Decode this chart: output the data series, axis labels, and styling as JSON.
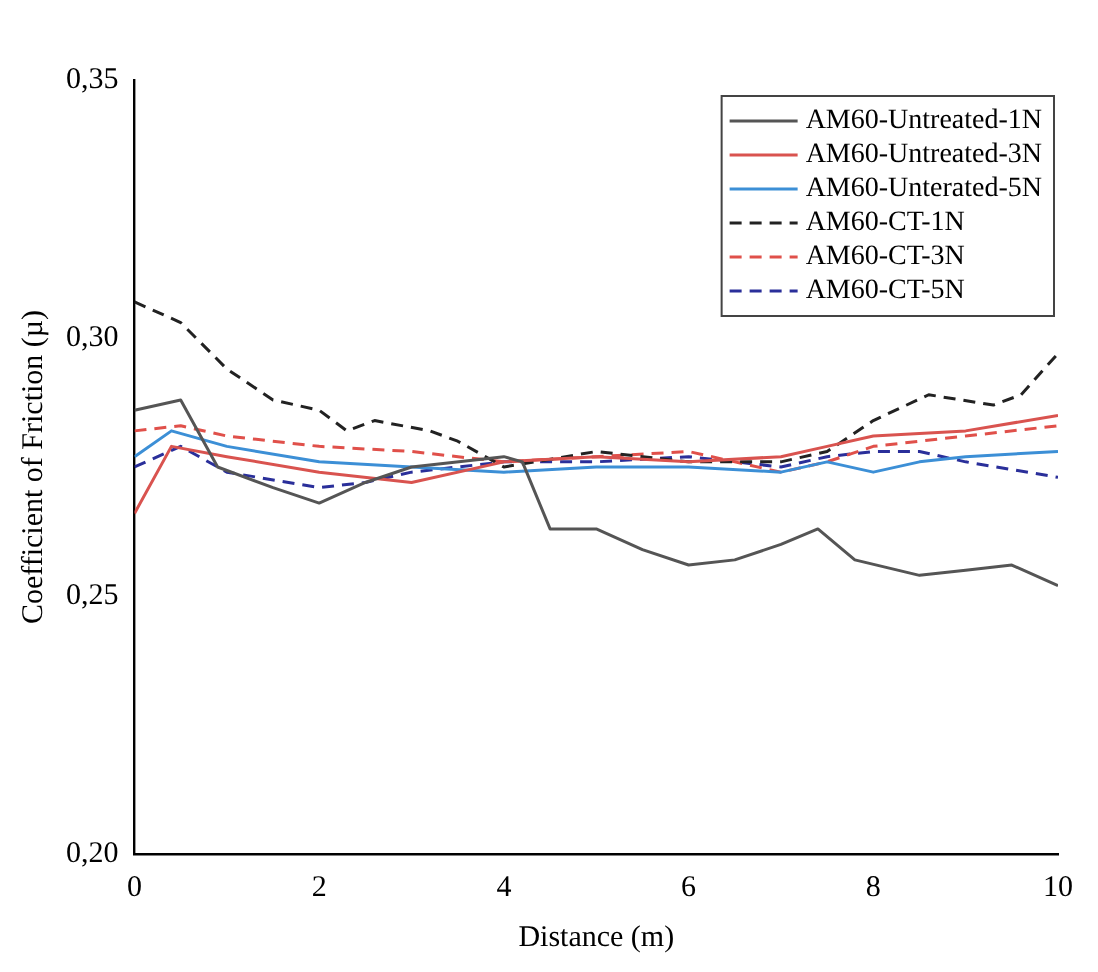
{
  "chart_data": {
    "type": "line",
    "xlabel": "Distance (m)",
    "ylabel": "Coefficient of Friction (µ)",
    "xlim": [
      0,
      10
    ],
    "xticks": [
      0,
      2,
      4,
      6,
      8,
      10
    ],
    "ylim": [
      0.2,
      0.35
    ],
    "yticks": [
      {
        "value": 0.2,
        "label": "0,20"
      },
      {
        "value": 0.25,
        "label": "0,25"
      },
      {
        "value": 0.3,
        "label": "0,30"
      },
      {
        "value": 0.35,
        "label": "0,35"
      }
    ],
    "grid": false,
    "legend": "top right",
    "marker": "none",
    "series": [
      {
        "name": "AM60-Untreated-1N",
        "color": "#555555",
        "line_style": "solid",
        "x": [
          0,
          0.5,
          0.9,
          1.5,
          2,
          2.5,
          3,
          4,
          4.2,
          4.5,
          5,
          5.5,
          6,
          6.5,
          7,
          7.4,
          7.8,
          8.5,
          9,
          9.5,
          10
        ],
        "values": [
          0.286,
          0.288,
          0.275,
          0.271,
          0.268,
          0.272,
          0.275,
          0.277,
          0.276,
          0.263,
          0.263,
          0.259,
          0.256,
          0.257,
          0.26,
          0.263,
          0.257,
          0.254,
          0.255,
          0.256,
          0.252
        ]
      },
      {
        "name": "AM60-Untreated-3N",
        "color": "#d9534f",
        "line_style": "solid",
        "x": [
          0,
          0.4,
          1,
          2,
          3,
          4,
          5,
          6,
          7,
          7.5,
          8,
          9,
          10
        ],
        "values": [
          0.266,
          0.279,
          0.277,
          0.274,
          0.272,
          0.276,
          0.277,
          0.276,
          0.277,
          0.279,
          0.281,
          0.282,
          0.285
        ]
      },
      {
        "name": "AM60-Unterated-5N",
        "color": "#3c8fd6",
        "line_style": "solid",
        "x": [
          0,
          0.4,
          1,
          2,
          3,
          4,
          5,
          6,
          7,
          7.5,
          8,
          8.5,
          9,
          10
        ],
        "values": [
          0.277,
          0.282,
          0.279,
          0.276,
          0.275,
          0.274,
          0.275,
          0.275,
          0.274,
          0.276,
          0.274,
          0.276,
          0.277,
          0.278
        ]
      },
      {
        "name": "AM60-CT-1N",
        "color": "#222222",
        "line_style": "dashed",
        "x": [
          0,
          0.5,
          1,
          1.5,
          2,
          2.3,
          2.6,
          3.2,
          3.5,
          4,
          5,
          6,
          7,
          7.5,
          8,
          8.6,
          9.3,
          9.6,
          10
        ],
        "values": [
          0.307,
          0.303,
          0.294,
          0.288,
          0.286,
          0.282,
          0.284,
          0.282,
          0.28,
          0.275,
          0.278,
          0.276,
          0.276,
          0.278,
          0.284,
          0.289,
          0.287,
          0.289,
          0.297
        ]
      },
      {
        "name": "AM60-CT-3N",
        "color": "#e0504a",
        "line_style": "dashed",
        "x": [
          0,
          0.5,
          1,
          2,
          3,
          4,
          5,
          6,
          7,
          7.5,
          8,
          9,
          10
        ],
        "values": [
          0.282,
          0.283,
          0.281,
          0.279,
          0.278,
          0.276,
          0.277,
          0.278,
          0.274,
          0.276,
          0.279,
          0.281,
          0.283
        ]
      },
      {
        "name": "AM60-CT-5N",
        "color": "#2a2f9a",
        "line_style": "dashed",
        "x": [
          0,
          0.5,
          1,
          2,
          2.5,
          3,
          4,
          5,
          6,
          7,
          7.5,
          8,
          8.5,
          9,
          10
        ],
        "values": [
          0.275,
          0.279,
          0.274,
          0.271,
          0.272,
          0.274,
          0.276,
          0.276,
          0.277,
          0.275,
          0.277,
          0.278,
          0.278,
          0.276,
          0.273
        ]
      }
    ]
  }
}
